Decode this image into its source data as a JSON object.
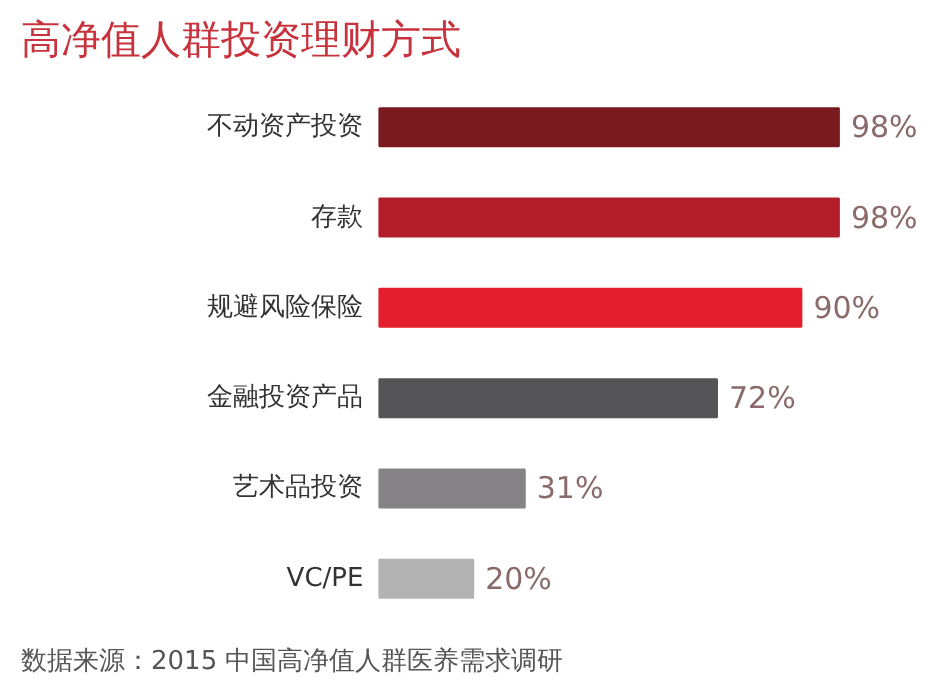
{
  "chart_data": {
    "type": "bar",
    "orientation": "horizontal",
    "title": "高净值人群投资理财方式",
    "categories": [
      "不动资产投资",
      "存款",
      "规避风险保险",
      "金融投资产品",
      "艺术品投资",
      "VC/PE"
    ],
    "values": [
      98,
      98,
      90,
      72,
      31,
      20
    ],
    "colors": [
      "#7a1a1f",
      "#b21f29",
      "#e31e2d",
      "#555456",
      "#858386",
      "#b3b2b3"
    ],
    "value_labels": [
      "98%",
      "98%",
      "90%",
      "72%",
      "31%",
      "20%"
    ],
    "annotations": [
      "数据来源：2015 中国高净值人群医养需求调研"
    ],
    "grid": false
  }
}
